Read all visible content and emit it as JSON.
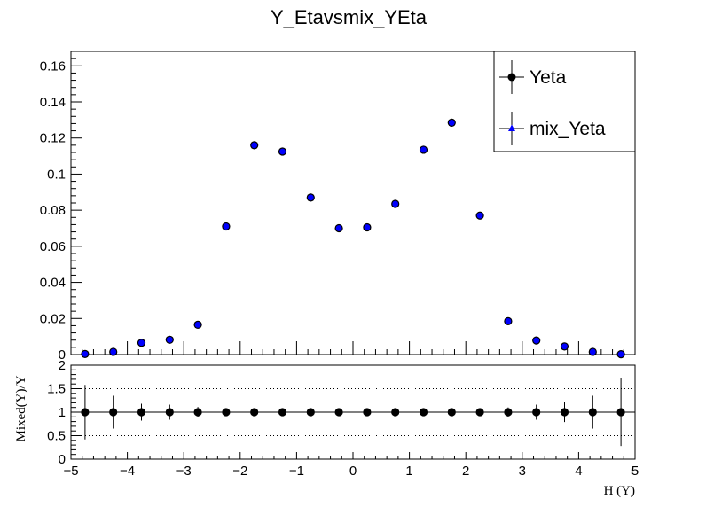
{
  "chart_data": [
    {
      "type": "scatter",
      "title": "Y_Etavsmix_YEta",
      "xlim": [
        -5,
        5
      ],
      "ylim": [
        0,
        0.168
      ],
      "yticks": [
        "0",
        "0.02",
        "0.04",
        "0.06",
        "0.08",
        "0.1",
        "0.12",
        "0.14",
        "0.16"
      ],
      "ytick_values": [
        0,
        0.02,
        0.04,
        0.06,
        0.08,
        0.1,
        0.12,
        0.14,
        0.16
      ],
      "legend": {
        "position": "top-right",
        "entries": [
          "Yeta",
          "mix_Yeta"
        ]
      },
      "x": [
        -4.75,
        -4.25,
        -3.75,
        -3.25,
        -2.75,
        -2.25,
        -1.75,
        -1.25,
        -0.75,
        -0.25,
        0.25,
        0.75,
        1.25,
        1.75,
        2.25,
        2.75,
        3.25,
        3.75,
        4.25,
        4.75
      ],
      "series": [
        {
          "name": "Yeta",
          "color": "#000000",
          "marker": "circle",
          "values": [
            0.0003,
            0.0015,
            0.0065,
            0.0082,
            0.0165,
            0.071,
            0.116,
            0.1125,
            0.087,
            0.07,
            0.0705,
            0.0835,
            0.1135,
            0.1285,
            0.077,
            0.0185,
            0.0078,
            0.0045,
            0.0015,
            0.0002
          ]
        },
        {
          "name": "mix_Yeta",
          "color": "#0000ff",
          "marker": "triangle",
          "values": [
            0.0003,
            0.0015,
            0.0065,
            0.0082,
            0.0165,
            0.071,
            0.116,
            0.1125,
            0.087,
            0.07,
            0.0705,
            0.0835,
            0.1135,
            0.1285,
            0.077,
            0.0185,
            0.0078,
            0.0045,
            0.0015,
            0.0002
          ]
        }
      ]
    },
    {
      "type": "scatter",
      "xlabel": "H (Y)",
      "ylabel": "Mixed(Y)/Y",
      "xlim": [
        -5,
        5
      ],
      "ylim": [
        0,
        2
      ],
      "xticks": [
        "−5",
        "−4",
        "−3",
        "−2",
        "−1",
        "0",
        "1",
        "2",
        "3",
        "4",
        "5"
      ],
      "xtick_values": [
        -5,
        -4,
        -3,
        -2,
        -1,
        0,
        1,
        2,
        3,
        4,
        5
      ],
      "yticks": [
        "0",
        "0.5",
        "1",
        "1.5",
        "2"
      ],
      "ytick_values": [
        0,
        0.5,
        1,
        1.5,
        2
      ],
      "reference_lines": [
        0.5,
        1,
        1.5
      ],
      "x": [
        -4.75,
        -4.25,
        -3.75,
        -3.25,
        -2.75,
        -2.25,
        -1.75,
        -1.25,
        -0.75,
        -0.25,
        0.25,
        0.75,
        1.25,
        1.75,
        2.25,
        2.75,
        3.25,
        3.75,
        4.25,
        4.75
      ],
      "values": [
        1,
        1,
        1,
        1,
        1,
        1,
        1,
        1,
        1,
        1,
        1,
        1,
        1,
        1,
        1,
        1,
        1,
        1,
        1,
        1
      ],
      "errors": [
        0.58,
        0.35,
        0.18,
        0.16,
        0.11,
        0.05,
        0.04,
        0.04,
        0.05,
        0.05,
        0.05,
        0.05,
        0.04,
        0.04,
        0.05,
        0.1,
        0.16,
        0.21,
        0.35,
        0.72
      ]
    }
  ]
}
